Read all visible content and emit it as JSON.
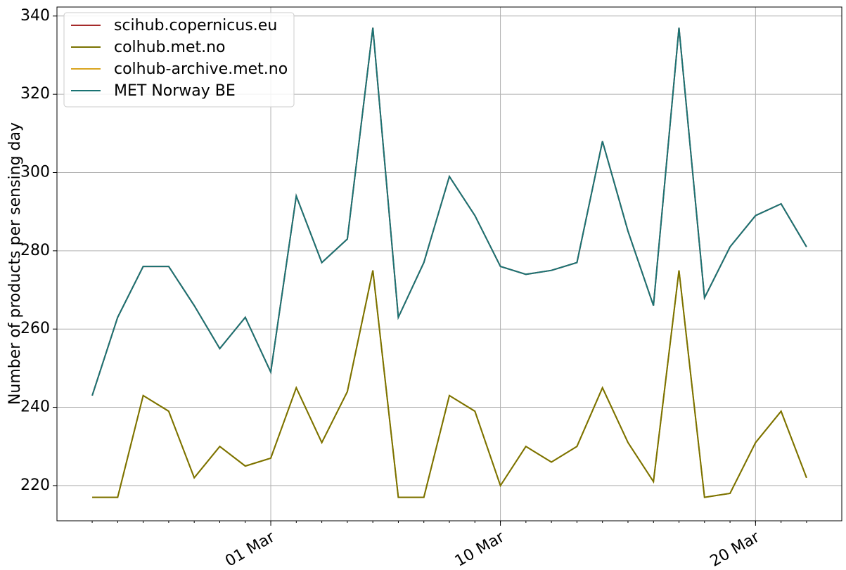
{
  "chart_data": {
    "type": "line",
    "y_label": "Number of products per sensing day",
    "x": [
      "22 Feb",
      "23 Feb",
      "24 Feb",
      "25 Feb",
      "26 Feb",
      "27 Feb",
      "28 Feb",
      "01 Mar",
      "02 Mar",
      "03 Mar",
      "04 Mar",
      "05 Mar",
      "06 Mar",
      "07 Mar",
      "08 Mar",
      "09 Mar",
      "10 Mar",
      "11 Mar",
      "12 Mar",
      "13 Mar",
      "14 Mar",
      "15 Mar",
      "16 Mar",
      "17 Mar",
      "18 Mar",
      "19 Mar",
      "20 Mar",
      "21 Mar",
      "22 Mar"
    ],
    "xticks": [
      "01 Mar",
      "10 Mar",
      "20 Mar"
    ],
    "ylim": [
      211,
      342.3
    ],
    "yticks": [
      220,
      240,
      260,
      280,
      300,
      320,
      340
    ],
    "grid": true,
    "legend": "upper left",
    "series": [
      {
        "name": "scihub.copernicus.eu",
        "color": "#a52a2a",
        "values": [
          243,
          263,
          276,
          276,
          266,
          255,
          263,
          249,
          294,
          277,
          283,
          337,
          263,
          277,
          299,
          289,
          276,
          274,
          275,
          277,
          308,
          285,
          266,
          337,
          268,
          281,
          289,
          292,
          281
        ]
      },
      {
        "name": "colhub.met.no",
        "color": "#7a7200",
        "values": [
          217,
          217,
          243,
          239,
          222,
          230,
          225,
          227,
          245,
          231,
          244,
          275,
          217,
          217,
          243,
          239,
          220,
          230,
          226,
          230,
          245,
          231,
          221,
          275,
          217,
          218,
          231,
          239,
          222
        ]
      },
      {
        "name": "colhub-archive.met.no",
        "color": "#daa520",
        "values": [
          217,
          217,
          243,
          239,
          222,
          230,
          225,
          227,
          245,
          231,
          244,
          275,
          217,
          217,
          243,
          239,
          220,
          230,
          226,
          230,
          245,
          231,
          221,
          275,
          217,
          218,
          231,
          239,
          222
        ]
      },
      {
        "name": "MET Norway BE",
        "color": "#1a7373",
        "values": [
          243,
          263,
          276,
          276,
          266,
          255,
          263,
          249,
          294,
          277,
          283,
          337,
          263,
          277,
          299,
          289,
          276,
          274,
          275,
          277,
          308,
          285,
          266,
          337,
          268,
          281,
          289,
          292,
          281
        ]
      }
    ]
  }
}
